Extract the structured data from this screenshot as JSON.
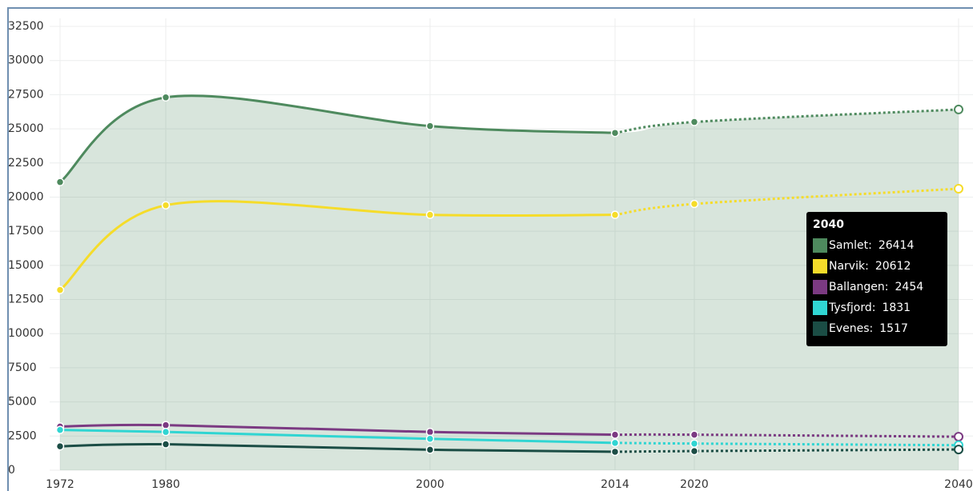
{
  "chart_data": {
    "type": "line",
    "x": [
      1972,
      1980,
      2000,
      2014,
      2020,
      2040
    ],
    "series": [
      {
        "name": "Samlet",
        "color": "#4e8a5e",
        "values": [
          21100,
          27300,
          25200,
          24700,
          25500,
          26414
        ]
      },
      {
        "name": "Narvik",
        "color": "#f5dc2a",
        "values": [
          13200,
          19400,
          18700,
          18700,
          19500,
          20612
        ]
      },
      {
        "name": "Ballangen",
        "color": "#7b3a82",
        "values": [
          3200,
          3300,
          2800,
          2600,
          2600,
          2454
        ]
      },
      {
        "name": "Tysfjord",
        "color": "#30d5d2",
        "values": [
          2950,
          2800,
          2300,
          2000,
          1950,
          1831
        ]
      },
      {
        "name": "Evenes",
        "color": "#1b4d45",
        "values": [
          1750,
          1900,
          1500,
          1350,
          1400,
          1517
        ]
      }
    ],
    "area_series": 0,
    "projection_start": 2014,
    "xlim": [
      1972,
      2040
    ],
    "xticks": [
      1972,
      1980,
      2000,
      2014,
      2020,
      2040
    ],
    "ylim": [
      0,
      32500
    ],
    "yticks": [
      0,
      2500,
      5000,
      7500,
      10000,
      12500,
      15000,
      17500,
      20000,
      22500,
      25000,
      27500,
      30000,
      32500
    ],
    "grid": true,
    "tooltip_index": 5
  }
}
